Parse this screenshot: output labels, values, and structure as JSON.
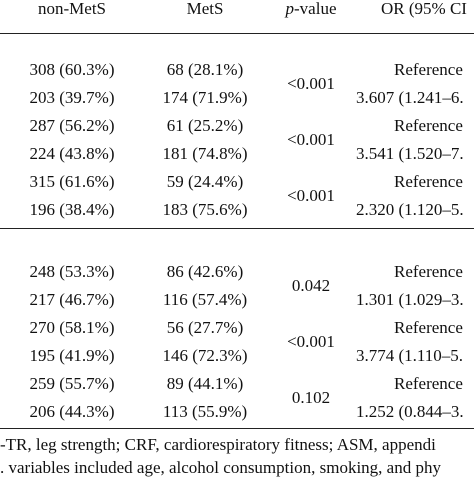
{
  "header": {
    "col_nonmets": "non-MetS",
    "col_mets": "MetS",
    "col_pvalue_italic": "p",
    "col_pvalue_rest": "-value",
    "col_or": "OR (95% CI"
  },
  "group1": {
    "rows": [
      {
        "nonmets": "308 (60.3%)",
        "mets": "68 (28.1%)",
        "or": "Reference"
      },
      {
        "nonmets": "203 (39.7%)",
        "mets": "174 (71.9%)",
        "or": "3.607 (1.241–6."
      },
      {
        "nonmets": "287 (56.2%)",
        "mets": "61 (25.2%)",
        "or": "Reference"
      },
      {
        "nonmets": "224 (43.8%)",
        "mets": "181 (74.8%)",
        "or": "3.541 (1.520–7."
      },
      {
        "nonmets": "315 (61.6%)",
        "mets": "59 (24.4%)",
        "or": "Reference"
      },
      {
        "nonmets": "196 (38.4%)",
        "mets": "183 (75.6%)",
        "or": "2.320 (1.120–5."
      }
    ],
    "pvalues": [
      "<0.001",
      "<0.001",
      "<0.001"
    ]
  },
  "group2": {
    "rows": [
      {
        "nonmets": "248 (53.3%)",
        "mets": "86 (42.6%)",
        "or": "Reference"
      },
      {
        "nonmets": "217 (46.7%)",
        "mets": "116 (57.4%)",
        "or": "1.301 (1.029–3."
      },
      {
        "nonmets": "270 (58.1%)",
        "mets": "56 (27.7%)",
        "or": "Reference"
      },
      {
        "nonmets": "195 (41.9%)",
        "mets": "146 (72.3%)",
        "or": "3.774 (1.110–5."
      },
      {
        "nonmets": "259 (55.7%)",
        "mets": "89 (44.1%)",
        "or": "Reference"
      },
      {
        "nonmets": "206 (44.3%)",
        "mets": "113 (55.9%)",
        "or": "1.252 (0.844–3."
      }
    ],
    "pvalues": [
      "0.042",
      "<0.001",
      "0.102"
    ]
  },
  "footnotes": {
    "line1": "-TR, leg strength; CRF, cardiorespiratory fitness; ASM, appendi",
    "line2": ". variables included age, alcohol consumption, smoking, and phy"
  }
}
